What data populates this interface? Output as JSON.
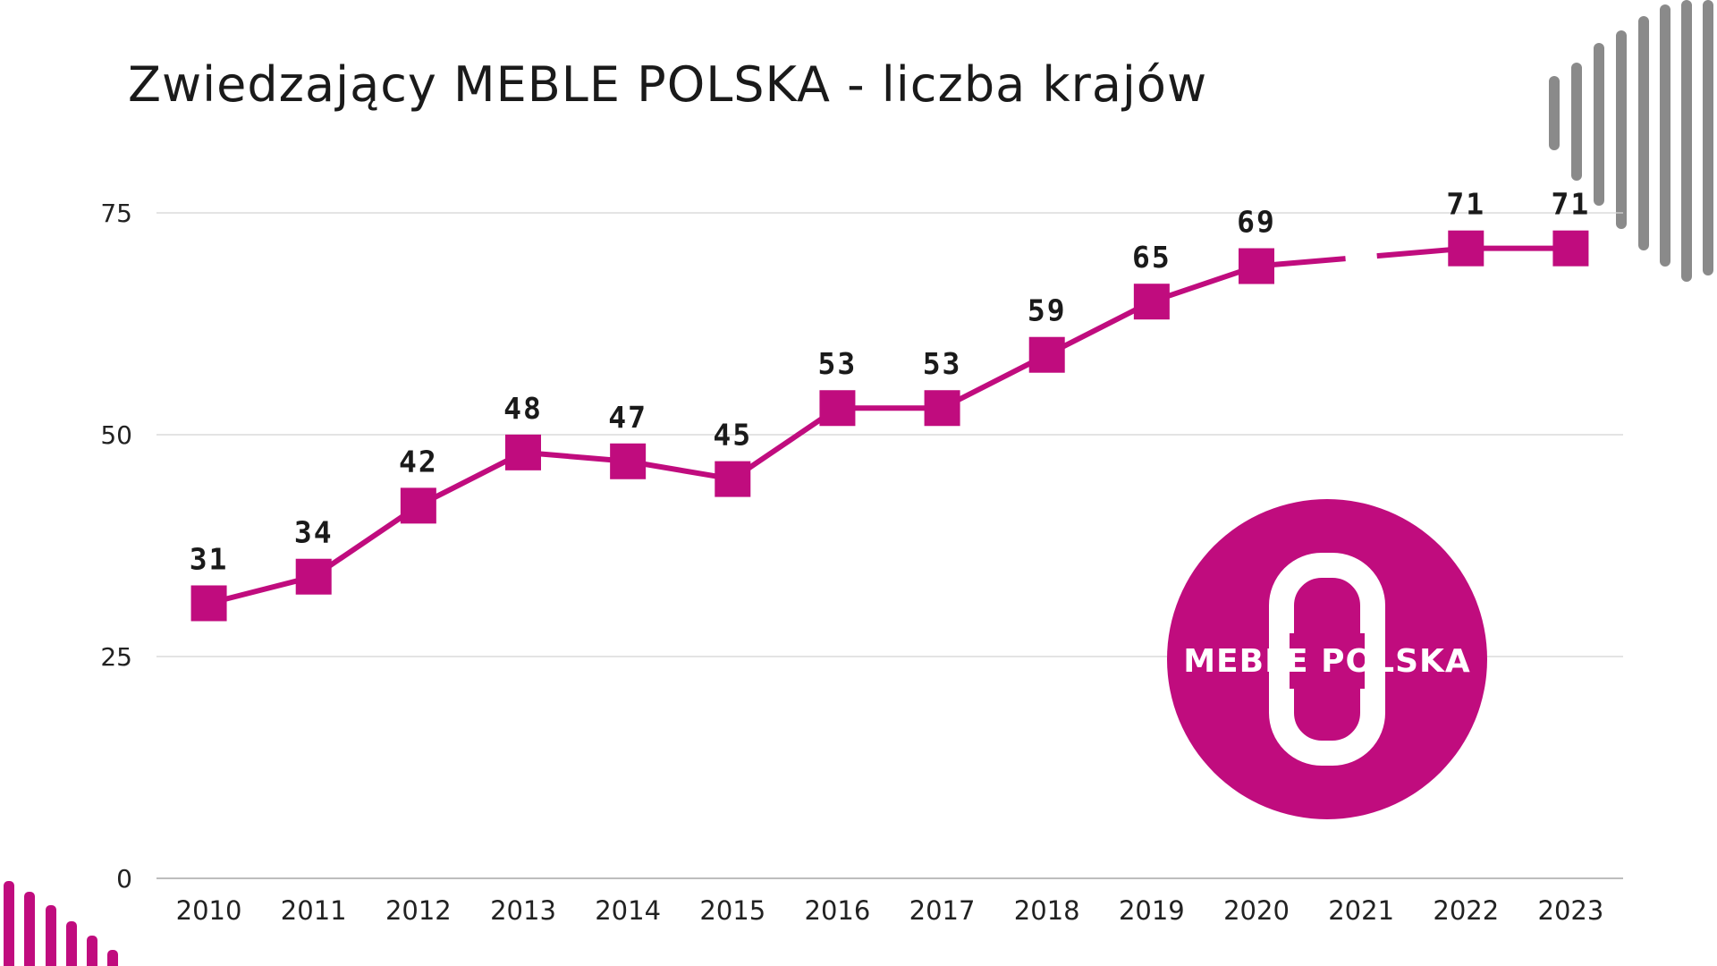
{
  "chart_data": {
    "type": "line",
    "title": "Zwiedzający MEBLE POLSKA - liczba krajów",
    "categories": [
      "2010",
      "2011",
      "2012",
      "2013",
      "2014",
      "2015",
      "2016",
      "2017",
      "2018",
      "2019",
      "2020",
      "2021",
      "2022",
      "2023"
    ],
    "series": [
      {
        "values": [
          31,
          34,
          42,
          48,
          47,
          45,
          53,
          53,
          59,
          65,
          69,
          null,
          71,
          71
        ]
      }
    ],
    "data_labels": [
      "31",
      "34",
      "42",
      "48",
      "47",
      "45",
      "53",
      "53",
      "59",
      "65",
      "69",
      "",
      "71",
      "71"
    ],
    "y_ticks": [
      "0",
      "25",
      "50",
      "75"
    ],
    "ylim": [
      0,
      75
    ],
    "grid": true,
    "colors": {
      "series": "#C00C7E",
      "grid": "#d4d4d4",
      "axis": "#bdbdbd",
      "decor_grey": "#8a8a8a"
    }
  },
  "logo": {
    "text": "MEBLE POLSKA",
    "color": "#C00C7E"
  }
}
